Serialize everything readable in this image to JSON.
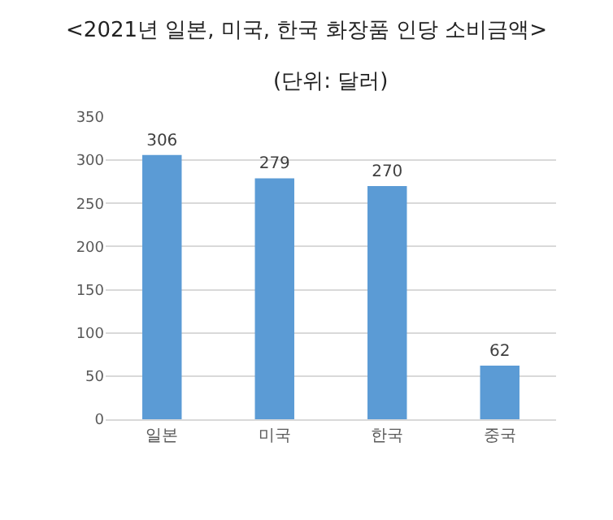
{
  "chart_data": {
    "type": "bar",
    "title": "<2021년 일본, 미국, 한국 화장품 인당 소비금액>",
    "subtitle": "(단위: 달러)",
    "categories": [
      "일본",
      "미국",
      "한국",
      "중국"
    ],
    "values": [
      306,
      279,
      270,
      62
    ],
    "color": "#5b9bd5",
    "ylim": [
      0,
      350
    ],
    "yticks": [
      0,
      50,
      100,
      150,
      200,
      250,
      300,
      350
    ],
    "grid": "y",
    "data_labels": true
  }
}
